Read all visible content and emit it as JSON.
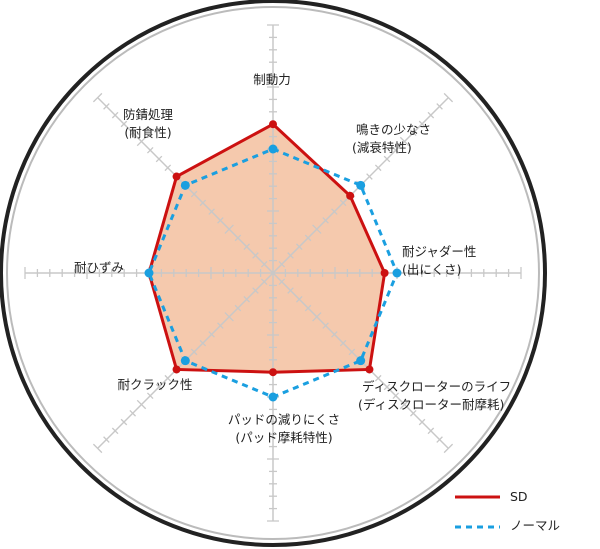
{
  "chart_data": {
    "type": "radar",
    "axes": [
      {
        "label": [
          "制動力"
        ]
      },
      {
        "label": [
          "鳴きの少なさ",
          "(減衰特性)"
        ]
      },
      {
        "label": [
          "耐ジャダー性",
          "(出にくさ)"
        ]
      },
      {
        "label": [
          "ディスクローターのライフ",
          "(ディスクローター耐摩耗)"
        ]
      },
      {
        "label": [
          "パッドの減りにくさ",
          "(パッド摩耗特性)"
        ]
      },
      {
        "label": [
          "耐クラック性"
        ]
      },
      {
        "label": [
          "耐ひずみ"
        ]
      },
      {
        "label": [
          "防錆処理",
          "(耐食性)"
        ]
      }
    ],
    "range": [
      0,
      20
    ],
    "series": [
      {
        "name": "SD",
        "color": "#cc1111",
        "style": "solid",
        "fill": "#f5c9ad",
        "values": [
          12,
          8.8,
          9,
          11,
          8,
          11,
          10,
          11
        ]
      },
      {
        "name": "ノーマル",
        "color": "#1a9fe0",
        "style": "dashed",
        "values": [
          10,
          10,
          10,
          10,
          10,
          10,
          10,
          10
        ]
      }
    ],
    "legend": "bottom-right"
  }
}
